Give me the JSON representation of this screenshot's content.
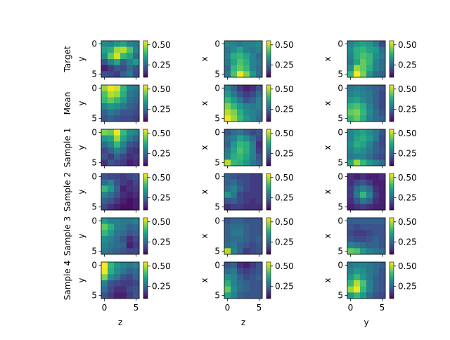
{
  "chart_data": {
    "type": "heatmap",
    "title": "",
    "colormap": "viridis",
    "color_range": [
      0.1,
      0.55
    ],
    "colorbar_ticks": [
      "0.25",
      "0.50"
    ],
    "row_labels": [
      "Target",
      "Mean",
      "Sample 1",
      "Sample 2",
      "Sample 3",
      "Sample 4"
    ],
    "columns": [
      {
        "ylabel": "y",
        "xlabel": "z"
      },
      {
        "ylabel": "x",
        "xlabel": "z"
      },
      {
        "ylabel": "x",
        "xlabel": "y"
      }
    ],
    "y_ticks": [
      "0",
      "5"
    ],
    "x_ticks": [
      "0",
      "5"
    ],
    "grid_shape": [
      6,
      6
    ],
    "panels": [
      [
        [
          [
            0.32,
            0.3,
            0.34,
            0.36,
            0.3,
            0.28
          ],
          [
            0.36,
            0.38,
            0.48,
            0.5,
            0.42,
            0.3
          ],
          [
            0.32,
            0.44,
            0.52,
            0.4,
            0.36,
            0.26
          ],
          [
            0.22,
            0.3,
            0.36,
            0.24,
            0.3,
            0.34
          ],
          [
            0.14,
            0.18,
            0.22,
            0.2,
            0.26,
            0.22
          ],
          [
            0.22,
            0.2,
            0.18,
            0.24,
            0.28,
            0.2
          ]
        ],
        [
          [
            0.3,
            0.3,
            0.28,
            0.3,
            0.3,
            0.32
          ],
          [
            0.28,
            0.32,
            0.36,
            0.3,
            0.28,
            0.3
          ],
          [
            0.3,
            0.38,
            0.4,
            0.36,
            0.3,
            0.26
          ],
          [
            0.28,
            0.36,
            0.42,
            0.38,
            0.3,
            0.28
          ],
          [
            0.26,
            0.4,
            0.44,
            0.4,
            0.3,
            0.26
          ],
          [
            0.28,
            0.42,
            0.54,
            0.46,
            0.34,
            0.26
          ]
        ],
        [
          [
            0.3,
            0.34,
            0.36,
            0.34,
            0.28,
            0.2
          ],
          [
            0.32,
            0.38,
            0.4,
            0.36,
            0.34,
            0.26
          ],
          [
            0.3,
            0.38,
            0.42,
            0.4,
            0.32,
            0.28
          ],
          [
            0.28,
            0.36,
            0.44,
            0.4,
            0.3,
            0.26
          ],
          [
            0.32,
            0.48,
            0.44,
            0.38,
            0.3,
            0.26
          ],
          [
            0.4,
            0.56,
            0.46,
            0.34,
            0.26,
            0.24
          ]
        ]
      ],
      [
        [
          [
            0.48,
            0.54,
            0.52,
            0.4,
            0.3,
            0.28
          ],
          [
            0.42,
            0.5,
            0.48,
            0.38,
            0.28,
            0.26
          ],
          [
            0.4,
            0.44,
            0.4,
            0.34,
            0.26,
            0.24
          ],
          [
            0.3,
            0.34,
            0.32,
            0.28,
            0.24,
            0.22
          ],
          [
            0.24,
            0.28,
            0.26,
            0.22,
            0.22,
            0.2
          ],
          [
            0.22,
            0.24,
            0.22,
            0.2,
            0.2,
            0.18
          ]
        ],
        [
          [
            0.3,
            0.24,
            0.18,
            0.14,
            0.16,
            0.22
          ],
          [
            0.34,
            0.28,
            0.22,
            0.18,
            0.2,
            0.26
          ],
          [
            0.4,
            0.34,
            0.28,
            0.22,
            0.24,
            0.3
          ],
          [
            0.46,
            0.4,
            0.34,
            0.3,
            0.28,
            0.3
          ],
          [
            0.5,
            0.46,
            0.38,
            0.32,
            0.3,
            0.28
          ],
          [
            0.54,
            0.48,
            0.4,
            0.34,
            0.3,
            0.26
          ]
        ],
        [
          [
            0.28,
            0.3,
            0.28,
            0.26,
            0.24,
            0.22
          ],
          [
            0.3,
            0.32,
            0.3,
            0.28,
            0.24,
            0.2
          ],
          [
            0.34,
            0.36,
            0.32,
            0.28,
            0.24,
            0.2
          ],
          [
            0.4,
            0.42,
            0.38,
            0.3,
            0.24,
            0.2
          ],
          [
            0.44,
            0.46,
            0.4,
            0.32,
            0.26,
            0.22
          ],
          [
            0.4,
            0.44,
            0.38,
            0.3,
            0.26,
            0.24
          ]
        ]
      ],
      [
        [
          [
            0.46,
            0.44,
            0.54,
            0.4,
            0.32,
            0.3
          ],
          [
            0.34,
            0.36,
            0.48,
            0.36,
            0.28,
            0.24
          ],
          [
            0.26,
            0.3,
            0.4,
            0.3,
            0.22,
            0.2
          ],
          [
            0.2,
            0.24,
            0.3,
            0.26,
            0.18,
            0.16
          ],
          [
            0.22,
            0.18,
            0.24,
            0.2,
            0.16,
            0.18
          ],
          [
            0.16,
            0.22,
            0.2,
            0.18,
            0.14,
            0.16
          ]
        ],
        [
          [
            0.22,
            0.26,
            0.28,
            0.24,
            0.2,
            0.22
          ],
          [
            0.26,
            0.3,
            0.36,
            0.32,
            0.26,
            0.2
          ],
          [
            0.24,
            0.34,
            0.4,
            0.38,
            0.3,
            0.16
          ],
          [
            0.28,
            0.36,
            0.42,
            0.38,
            0.3,
            0.18
          ],
          [
            0.3,
            0.38,
            0.4,
            0.36,
            0.3,
            0.22
          ],
          [
            0.5,
            0.4,
            0.38,
            0.34,
            0.28,
            0.24
          ]
        ],
        [
          [
            0.3,
            0.34,
            0.36,
            0.32,
            0.28,
            0.22
          ],
          [
            0.3,
            0.36,
            0.38,
            0.34,
            0.28,
            0.2
          ],
          [
            0.32,
            0.38,
            0.36,
            0.3,
            0.24,
            0.2
          ],
          [
            0.3,
            0.34,
            0.32,
            0.28,
            0.24,
            0.22
          ],
          [
            0.28,
            0.3,
            0.3,
            0.26,
            0.22,
            0.2
          ],
          [
            0.36,
            0.48,
            0.4,
            0.34,
            0.3,
            0.26
          ]
        ]
      ],
      [
        [
          [
            0.22,
            0.2,
            0.2,
            0.18,
            0.2,
            0.22
          ],
          [
            0.26,
            0.3,
            0.22,
            0.18,
            0.16,
            0.2
          ],
          [
            0.4,
            0.34,
            0.24,
            0.14,
            0.16,
            0.18
          ],
          [
            0.3,
            0.26,
            0.22,
            0.16,
            0.14,
            0.16
          ],
          [
            0.24,
            0.22,
            0.18,
            0.14,
            0.12,
            0.14
          ],
          [
            0.2,
            0.16,
            0.14,
            0.12,
            0.12,
            0.14
          ]
        ],
        [
          [
            0.24,
            0.22,
            0.2,
            0.2,
            0.18,
            0.18
          ],
          [
            0.24,
            0.26,
            0.22,
            0.2,
            0.18,
            0.18
          ],
          [
            0.26,
            0.3,
            0.24,
            0.2,
            0.18,
            0.18
          ],
          [
            0.34,
            0.28,
            0.2,
            0.18,
            0.18,
            0.18
          ],
          [
            0.22,
            0.24,
            0.2,
            0.18,
            0.16,
            0.18
          ],
          [
            0.16,
            0.18,
            0.18,
            0.16,
            0.16,
            0.16
          ]
        ],
        [
          [
            0.16,
            0.14,
            0.16,
            0.14,
            0.14,
            0.16
          ],
          [
            0.16,
            0.2,
            0.22,
            0.18,
            0.14,
            0.14
          ],
          [
            0.18,
            0.26,
            0.3,
            0.26,
            0.16,
            0.14
          ],
          [
            0.18,
            0.28,
            0.4,
            0.3,
            0.18,
            0.14
          ],
          [
            0.16,
            0.22,
            0.28,
            0.24,
            0.16,
            0.14
          ],
          [
            0.14,
            0.16,
            0.18,
            0.16,
            0.14,
            0.14
          ]
        ]
      ],
      [
        [
          [
            0.34,
            0.3,
            0.3,
            0.28,
            0.28,
            0.3
          ],
          [
            0.44,
            0.38,
            0.3,
            0.28,
            0.24,
            0.26
          ],
          [
            0.4,
            0.34,
            0.28,
            0.26,
            0.22,
            0.24
          ],
          [
            0.32,
            0.3,
            0.26,
            0.22,
            0.16,
            0.2
          ],
          [
            0.3,
            0.28,
            0.26,
            0.24,
            0.14,
            0.18
          ],
          [
            0.28,
            0.26,
            0.24,
            0.22,
            0.2,
            0.2
          ]
        ],
        [
          [
            0.22,
            0.24,
            0.24,
            0.22,
            0.22,
            0.22
          ],
          [
            0.24,
            0.26,
            0.26,
            0.24,
            0.22,
            0.22
          ],
          [
            0.24,
            0.28,
            0.28,
            0.24,
            0.22,
            0.22
          ],
          [
            0.24,
            0.26,
            0.26,
            0.24,
            0.22,
            0.24
          ],
          [
            0.26,
            0.28,
            0.24,
            0.22,
            0.2,
            0.22
          ],
          [
            0.5,
            0.3,
            0.24,
            0.18,
            0.2,
            0.22
          ]
        ],
        [
          [
            0.24,
            0.24,
            0.24,
            0.24,
            0.24,
            0.24
          ],
          [
            0.22,
            0.2,
            0.22,
            0.22,
            0.22,
            0.22
          ],
          [
            0.2,
            0.18,
            0.18,
            0.2,
            0.22,
            0.22
          ],
          [
            0.22,
            0.2,
            0.2,
            0.22,
            0.24,
            0.22
          ],
          [
            0.3,
            0.28,
            0.26,
            0.24,
            0.24,
            0.22
          ],
          [
            0.44,
            0.42,
            0.34,
            0.3,
            0.28,
            0.26
          ]
        ]
      ],
      [
        [
          [
            0.56,
            0.4,
            0.34,
            0.3,
            0.28,
            0.3
          ],
          [
            0.54,
            0.38,
            0.32,
            0.28,
            0.24,
            0.26
          ],
          [
            0.46,
            0.32,
            0.28,
            0.22,
            0.2,
            0.24
          ],
          [
            0.3,
            0.22,
            0.2,
            0.18,
            0.18,
            0.2
          ],
          [
            0.26,
            0.2,
            0.16,
            0.16,
            0.2,
            0.22
          ],
          [
            0.22,
            0.18,
            0.14,
            0.14,
            0.18,
            0.22
          ]
        ],
        [
          [
            0.22,
            0.24,
            0.16,
            0.14,
            0.18,
            0.22
          ],
          [
            0.26,
            0.28,
            0.2,
            0.18,
            0.2,
            0.22
          ],
          [
            0.32,
            0.3,
            0.24,
            0.2,
            0.22,
            0.24
          ],
          [
            0.38,
            0.3,
            0.26,
            0.24,
            0.22,
            0.22
          ],
          [
            0.44,
            0.32,
            0.26,
            0.24,
            0.22,
            0.22
          ],
          [
            0.36,
            0.3,
            0.24,
            0.22,
            0.22,
            0.22
          ]
        ],
        [
          [
            0.28,
            0.3,
            0.3,
            0.28,
            0.26,
            0.24
          ],
          [
            0.3,
            0.34,
            0.32,
            0.28,
            0.26,
            0.22
          ],
          [
            0.34,
            0.4,
            0.34,
            0.28,
            0.24,
            0.22
          ],
          [
            0.4,
            0.5,
            0.42,
            0.3,
            0.24,
            0.22
          ],
          [
            0.48,
            0.54,
            0.4,
            0.3,
            0.24,
            0.22
          ],
          [
            0.34,
            0.4,
            0.34,
            0.26,
            0.22,
            0.2
          ]
        ]
      ]
    ]
  }
}
